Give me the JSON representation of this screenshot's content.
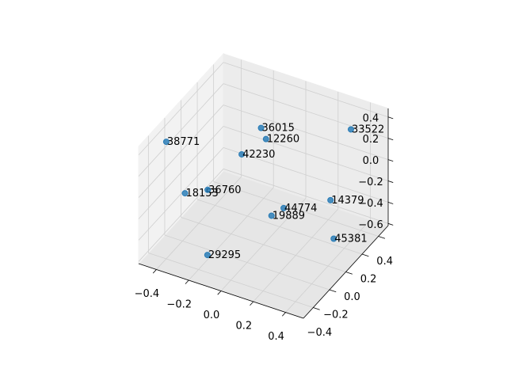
{
  "chart_data": {
    "type": "scatter3d",
    "labels": [
      "38771",
      "36015",
      "12260",
      "33522",
      "42230",
      "18153",
      "36760",
      "44774",
      "19889",
      "14379",
      "45381",
      "29295"
    ],
    "x": [
      -0.45,
      -0.06,
      -0.09,
      0.35,
      -0.19,
      -0.42,
      -0.35,
      0.09,
      0.04,
      0.38,
      0.41,
      -0.17
    ],
    "y": [
      -0.3,
      0.09,
      0.21,
      0.38,
      0.11,
      -0.13,
      0.01,
      0.07,
      0.02,
      0.07,
      0.05,
      -0.35
    ],
    "z": [
      0.37,
      0.37,
      0.15,
      0.32,
      0.04,
      -0.24,
      -0.29,
      -0.29,
      -0.345,
      -0.07,
      -0.4,
      -0.51
    ],
    "color": "#1f77b4",
    "xlim": [
      -0.51,
      0.51
    ],
    "ylim": [
      -0.52,
      0.52
    ],
    "zlim": [
      -0.62,
      0.48
    ],
    "xticks": [
      {
        "value": -0.4,
        "label": "−0.4"
      },
      {
        "value": -0.2,
        "label": "−0.2"
      },
      {
        "value": 0,
        "label": "0.0"
      },
      0.2,
      0.4
    ],
    "yticks": [
      {
        "value": -0.4,
        "label": "−0.4"
      },
      {
        "value": -0.2,
        "label": "−0.2"
      },
      {
        "value": 0,
        "label": "0.0"
      },
      0.2,
      0.4
    ],
    "zticks": [
      0.4,
      0.2,
      {
        "value": 0,
        "label": "0.0"
      },
      {
        "value": -0.2,
        "label": "−0.2"
      },
      {
        "value": -0.4,
        "label": "−0.4"
      },
      {
        "value": -0.6,
        "label": "−0.6"
      }
    ],
    "grid": true
  }
}
